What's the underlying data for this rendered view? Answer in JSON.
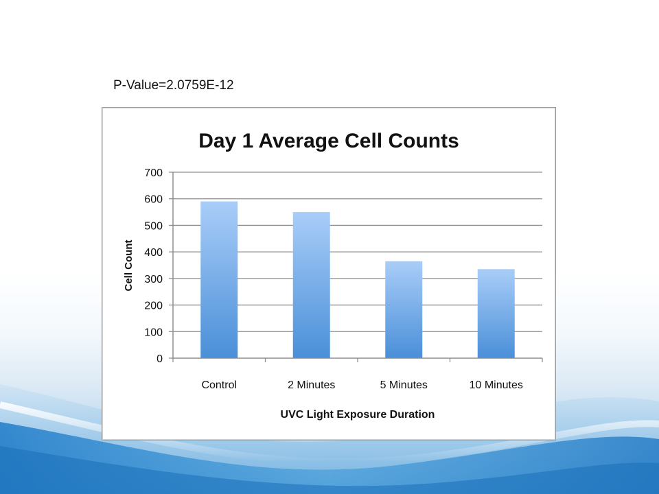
{
  "slide": {
    "annotation": "P-Value=2.0759E-12"
  },
  "colors": {
    "bar_top": "#a9cdf8",
    "bar_bottom": "#4a8fd8",
    "grid": "#8e8e8e",
    "text": "#111111"
  },
  "chart_data": {
    "type": "bar",
    "title": "Day 1 Average Cell Counts",
    "xlabel": "UVC Light Exposure Duration",
    "ylabel": "Cell Count",
    "categories": [
      "Control",
      "2 Minutes",
      "5 Minutes",
      "10 Minutes"
    ],
    "values": [
      590,
      550,
      365,
      335
    ],
    "ylim": [
      0,
      700
    ],
    "yticks": [
      0,
      100,
      200,
      300,
      400,
      500,
      600,
      700
    ],
    "grid": true,
    "legend": "none"
  }
}
